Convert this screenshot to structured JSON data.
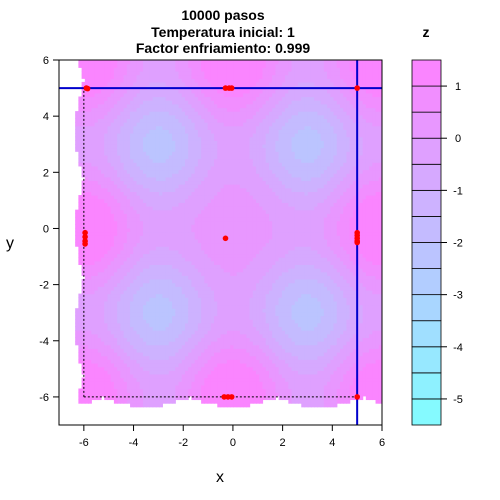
{
  "chart_data": {
    "type": "heatmap",
    "title_lines": [
      "10000 pasos",
      "Temperatura inicial: 1",
      "Factor enfriamiento: 0.999"
    ],
    "xlabel": "x",
    "ylabel": "y",
    "xlim": [
      -7,
      6
    ],
    "ylim": [
      -7,
      6
    ],
    "xticks": [
      -6,
      -4,
      -2,
      0,
      2,
      4,
      6
    ],
    "yticks": [
      -6,
      -4,
      -2,
      0,
      2,
      4,
      6
    ],
    "colorbar": {
      "title": "z",
      "range": [
        -5.5,
        1.5
      ],
      "ticks": [
        1,
        0,
        -1,
        -2,
        -3,
        -4,
        -5
      ],
      "levels": 14,
      "low_color": "#80ffff",
      "high_color": "#ff80ff"
    },
    "mask_bound": 6.0,
    "points": [
      [
        -5.9,
        5.0
      ],
      [
        -5.85,
        4.98
      ],
      [
        -0.3,
        5.0
      ],
      [
        -0.15,
        5.0
      ],
      [
        -0.05,
        5.0
      ],
      [
        5.0,
        5.0
      ],
      [
        -5.95,
        -0.15
      ],
      [
        -5.95,
        -0.3
      ],
      [
        -5.95,
        -0.45
      ],
      [
        -5.95,
        -0.55
      ],
      [
        -0.3,
        -0.35
      ],
      [
        5.0,
        -0.15
      ],
      [
        5.0,
        -0.25
      ],
      [
        5.0,
        -0.35
      ],
      [
        5.0,
        -0.45
      ],
      [
        5.0,
        -0.5
      ],
      [
        -0.35,
        -6.0
      ],
      [
        -0.2,
        -6.0
      ],
      [
        -0.05,
        -6.0
      ],
      [
        5.0,
        -6.0
      ]
    ],
    "reference_lines": {
      "solid": {
        "x": 5,
        "y": 5,
        "color": "#0000cc"
      },
      "dotted": {
        "x": -6,
        "y": -6,
        "color": "#000000"
      }
    },
    "point_color": "#ff0000"
  }
}
